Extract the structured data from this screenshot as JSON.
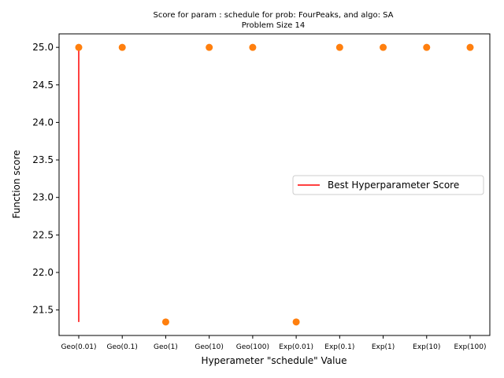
{
  "chart_data": {
    "type": "scatter",
    "title_line1": "Score for param : schedule for prob: FourPeaks, and algo: SA",
    "title_line2": "Problem Size 14",
    "xlabel": "Hyperameter \"schedule\" Value",
    "ylabel": "Function score",
    "categories": [
      "Geo(0.01)",
      "Geo(0.1)",
      "Geo(1)",
      "Geo(10)",
      "Geo(100)",
      "Exp(0.01)",
      "Exp(0.1)",
      "Exp(1)",
      "Exp(10)",
      "Exp(100)"
    ],
    "values": [
      25.0,
      25.0,
      21.34,
      25.0,
      25.0,
      21.34,
      25.0,
      25.0,
      25.0,
      25.0
    ],
    "yticks": [
      21.5,
      22.0,
      22.5,
      23.0,
      23.5,
      24.0,
      24.5,
      25.0
    ],
    "ytick_labels": [
      "21.5",
      "22.0",
      "22.5",
      "23.0",
      "23.5",
      "24.0",
      "24.5",
      "25.0"
    ],
    "ylim": [
      21.16,
      25.18
    ],
    "best_line": {
      "label": "Best Hyperparameter Score",
      "x_category": "Geo(0.01)",
      "y_from": 21.34,
      "y_to": 25.0,
      "color": "#ff0000"
    },
    "point_color": "#ff7f0e",
    "grid": false,
    "legend_position": "center-right"
  }
}
